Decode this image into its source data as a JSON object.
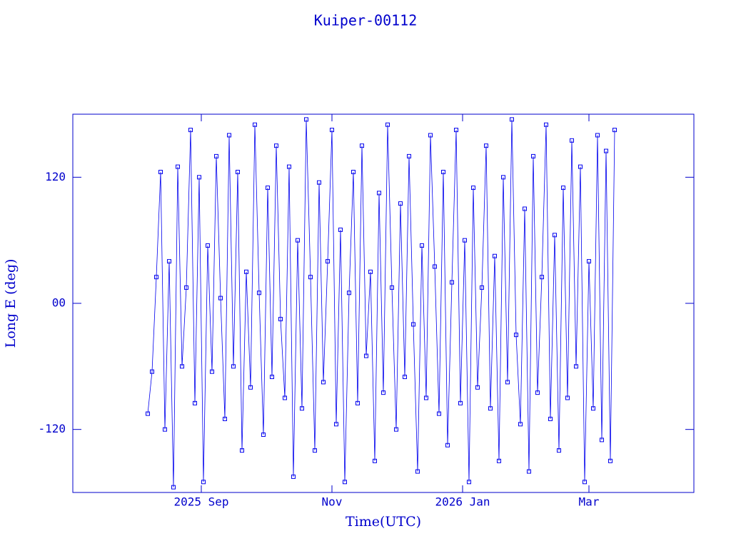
{
  "chart_data": {
    "type": "line",
    "title": "Kuiper-00112",
    "x_label": "Time(UTC)",
    "y_label": "Long E (deg)",
    "color": "#0000ee",
    "xlim": [
      183,
      473
    ],
    "xticks": [
      {
        "value": 243,
        "label": "2025 Sep"
      },
      {
        "value": 304,
        "label": "Nov"
      },
      {
        "value": 365,
        "label": "2026 Jan"
      },
      {
        "value": 424,
        "label": "Mar"
      }
    ],
    "ylim": [
      -180,
      180
    ],
    "yticks": [
      -120,
      {
        "value": 0,
        "label": "00"
      },
      120
    ],
    "x": [
      218,
      220,
      222,
      224,
      226,
      228,
      230,
      232,
      234,
      236,
      238,
      240,
      242,
      244,
      246,
      248,
      250,
      252,
      254,
      256,
      258,
      260,
      262,
      264,
      266,
      268,
      270,
      272,
      274,
      276,
      278,
      280,
      282,
      284,
      286,
      288,
      290,
      292,
      294,
      296,
      298,
      300,
      302,
      304,
      306,
      308,
      310,
      312,
      314,
      316,
      318,
      320,
      322,
      324,
      326,
      328,
      330,
      332,
      334,
      336,
      338,
      340,
      342,
      344,
      346,
      348,
      350,
      352,
      354,
      356,
      358,
      360,
      362,
      364,
      366,
      368,
      370,
      372,
      374,
      376,
      378,
      380,
      382,
      384,
      386,
      388,
      390,
      392,
      394,
      396,
      398,
      400,
      402,
      404,
      406,
      408,
      410,
      412,
      414,
      416,
      418,
      420,
      422,
      424,
      426,
      428,
      430,
      432,
      434,
      436
    ],
    "values": [
      -105,
      -65,
      25,
      125,
      -120,
      40,
      -175,
      130,
      -60,
      15,
      165,
      -95,
      120,
      -170,
      55,
      -65,
      140,
      5,
      -110,
      160,
      -60,
      125,
      -140,
      30,
      -80,
      170,
      10,
      -125,
      110,
      -70,
      150,
      -15,
      -90,
      130,
      -165,
      60,
      -100,
      175,
      25,
      -140,
      115,
      -75,
      40,
      165,
      -115,
      70,
      -170,
      10,
      125,
      -95,
      150,
      -50,
      30,
      -150,
      105,
      -85,
      170,
      15,
      -120,
      95,
      -70,
      140,
      -20,
      -160,
      55,
      -90,
      160,
      35,
      -105,
      125,
      -135,
      20,
      165,
      -95,
      60,
      -170,
      110,
      -80,
      15,
      150,
      -100,
      45,
      -150,
      120,
      -75,
      175,
      -30,
      -115,
      90,
      -160,
      140,
      -85,
      25,
      170,
      -110,
      65,
      -140,
      110,
      -90,
      155,
      -60,
      130,
      -170,
      40,
      -100,
      160,
      -130,
      145,
      -150,
      165
    ]
  }
}
